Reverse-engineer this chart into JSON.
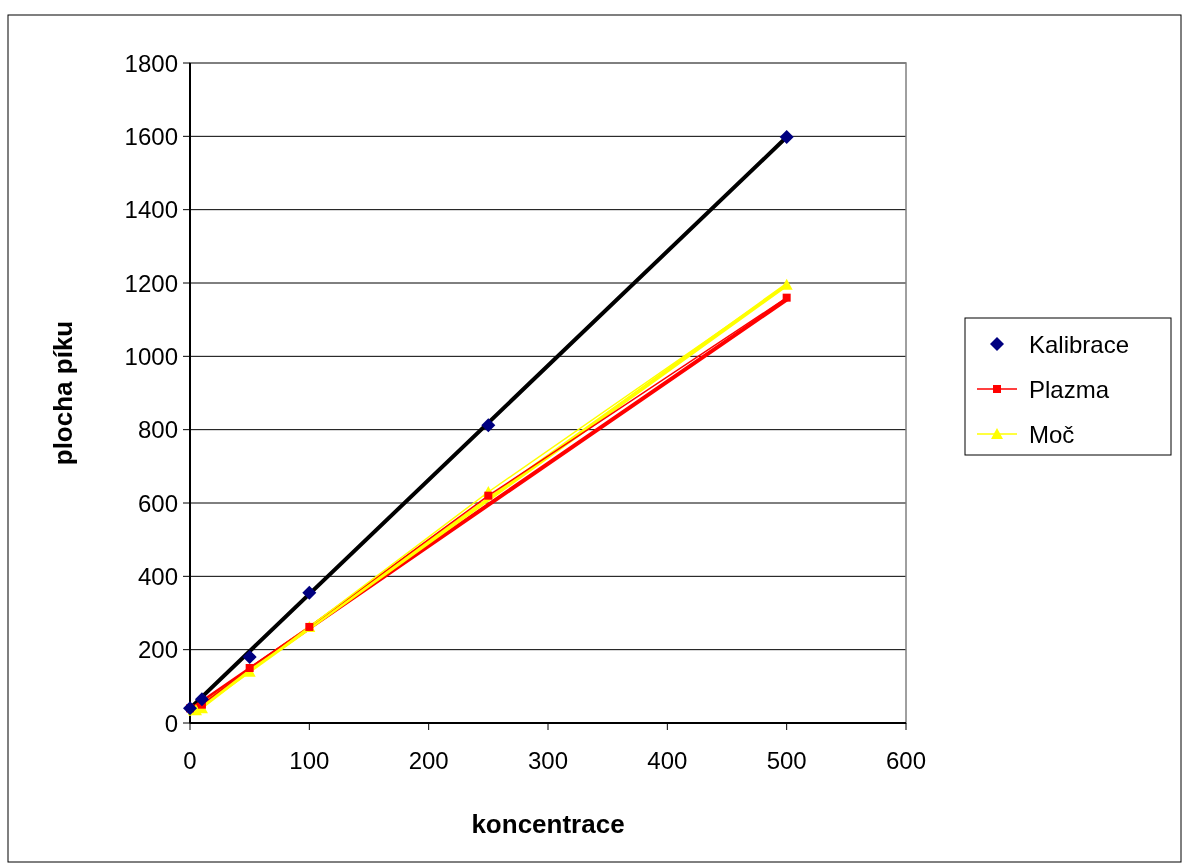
{
  "chart_data": {
    "type": "scatter",
    "xlabel": "koncentrace",
    "ylabel": "plocha píku",
    "xlim": [
      0,
      600
    ],
    "xticks": [
      0,
      100,
      200,
      300,
      400,
      500,
      600
    ],
    "ylim": [
      0,
      1800
    ],
    "yticks": [
      0,
      200,
      400,
      600,
      800,
      1000,
      1200,
      1400,
      1600,
      1800
    ],
    "grid": "y",
    "legend": "right",
    "series": [
      {
        "type": "line",
        "color": "#000000",
        "x": [
          0,
          500
        ],
        "values": [
          40,
          1598
        ]
      },
      {
        "type": "line",
        "color": "#ff0000",
        "x": [
          0,
          500
        ],
        "values": [
          35,
          1155
        ]
      },
      {
        "type": "line",
        "color": "#ffff00",
        "x": [
          0,
          500
        ],
        "values": [
          25,
          1195
        ]
      },
      {
        "name": "Kalibrace",
        "color": "#000080",
        "marker": "diamond",
        "x": [
          0,
          10,
          50,
          100,
          250,
          500
        ],
        "values": [
          40,
          65,
          180,
          355,
          812,
          1598
        ]
      },
      {
        "name": "Plazma",
        "type": "line",
        "color": "#ff0000",
        "marker": "square",
        "x": [
          0,
          10,
          50,
          100,
          250,
          500
        ],
        "values": [
          40,
          50,
          150,
          262,
          620,
          1160
        ]
      },
      {
        "name": "Moč",
        "type": "line",
        "color": "#ffff00",
        "marker": "triangle",
        "x": [
          5,
          10,
          50,
          100,
          250,
          500
        ],
        "values": [
          35,
          40,
          140,
          262,
          630,
          1195
        ]
      }
    ]
  }
}
